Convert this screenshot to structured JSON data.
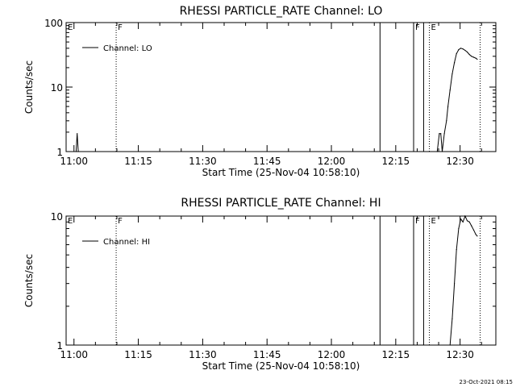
{
  "footer": {
    "timestamp": "23-Oct-2021 08:15"
  },
  "chart_data": [
    {
      "type": "line",
      "title": "RHESSI PARTICLE_RATE Channel: LO",
      "xlabel": "Start Time (25-Nov-04 10:58:10)",
      "ylabel": "Counts/sec",
      "yscale": "log",
      "ylim": [
        1,
        100
      ],
      "xlim": [
        "10:58:10",
        "12:38:20"
      ],
      "x_ticks": [
        "11:00",
        "11:15",
        "11:30",
        "11:45",
        "12:00",
        "12:15",
        "12:30"
      ],
      "y_ticks": [
        "1",
        "10",
        "100"
      ],
      "legend": {
        "position": "top-left",
        "entries": [
          "Channel: LO"
        ]
      },
      "series": [
        {
          "name": "Channel: LO",
          "x": [
            "11:00:30",
            "11:00:45",
            "11:01:00",
            "12:24:40",
            "12:25:10",
            "12:25:30",
            "12:25:50",
            "12:26:20",
            "12:26:50",
            "12:27:10",
            "12:27:40",
            "12:28:10",
            "12:28:40",
            "12:29:10",
            "12:29:40",
            "12:30:10",
            "12:30:40",
            "12:31:10",
            "12:31:40",
            "12:32:10",
            "12:32:40",
            "12:33:10",
            "12:33:40",
            "12:34:00"
          ],
          "y": [
            1.0,
            1.9,
            1.0,
            1.0,
            1.9,
            1.9,
            1.0,
            1.9,
            3,
            5,
            9,
            16,
            24,
            33,
            38,
            40,
            39,
            37,
            35,
            32,
            30,
            29,
            28,
            27
          ]
        }
      ],
      "markers": [
        {
          "label": "E",
          "x": "10:58:10",
          "style": "solid"
        },
        {
          "label": "F",
          "x": "11:09:50",
          "style": "dotted"
        },
        {
          "label": "",
          "x": "12:11:20",
          "style": "solid"
        },
        {
          "label": "F",
          "x": "12:19:10",
          "style": "solid"
        },
        {
          "label": "",
          "x": "12:21:30",
          "style": "solid"
        },
        {
          "label": "E",
          "x": "12:22:50",
          "style": "dotted"
        },
        {
          "label": "",
          "x": "12:34:40",
          "style": "dotted"
        }
      ]
    },
    {
      "type": "line",
      "title": "RHESSI PARTICLE_RATE Channel: HI",
      "xlabel": "Start Time (25-Nov-04 10:58:10)",
      "ylabel": "Counts/sec",
      "yscale": "log",
      "ylim": [
        1,
        10
      ],
      "xlim": [
        "10:58:10",
        "12:38:20"
      ],
      "x_ticks": [
        "11:00",
        "11:15",
        "11:30",
        "11:45",
        "12:00",
        "12:15",
        "12:30"
      ],
      "y_ticks": [
        "1",
        "10"
      ],
      "legend": {
        "position": "top-left",
        "entries": [
          "Channel: HI"
        ]
      },
      "series": [
        {
          "name": "Channel: HI",
          "x": [
            "12:27:40",
            "12:28:10",
            "12:28:40",
            "12:29:10",
            "12:29:40",
            "12:30:10",
            "12:30:40",
            "12:31:10",
            "12:31:40",
            "12:32:10",
            "12:32:40",
            "12:33:10",
            "12:33:40",
            "12:34:00"
          ],
          "y": [
            1.0,
            1.6,
            3.0,
            5.5,
            8.0,
            9.5,
            9.0,
            10.0,
            9.2,
            9.0,
            8.4,
            7.8,
            7.2,
            7.0
          ]
        }
      ],
      "markers": [
        {
          "label": "E",
          "x": "10:58:10",
          "style": "solid"
        },
        {
          "label": "F",
          "x": "11:09:50",
          "style": "dotted"
        },
        {
          "label": "",
          "x": "12:11:20",
          "style": "solid"
        },
        {
          "label": "F",
          "x": "12:19:10",
          "style": "solid"
        },
        {
          "label": "",
          "x": "12:21:30",
          "style": "solid"
        },
        {
          "label": "E",
          "x": "12:22:50",
          "style": "dotted"
        },
        {
          "label": "",
          "x": "12:34:40",
          "style": "dotted"
        }
      ]
    }
  ]
}
